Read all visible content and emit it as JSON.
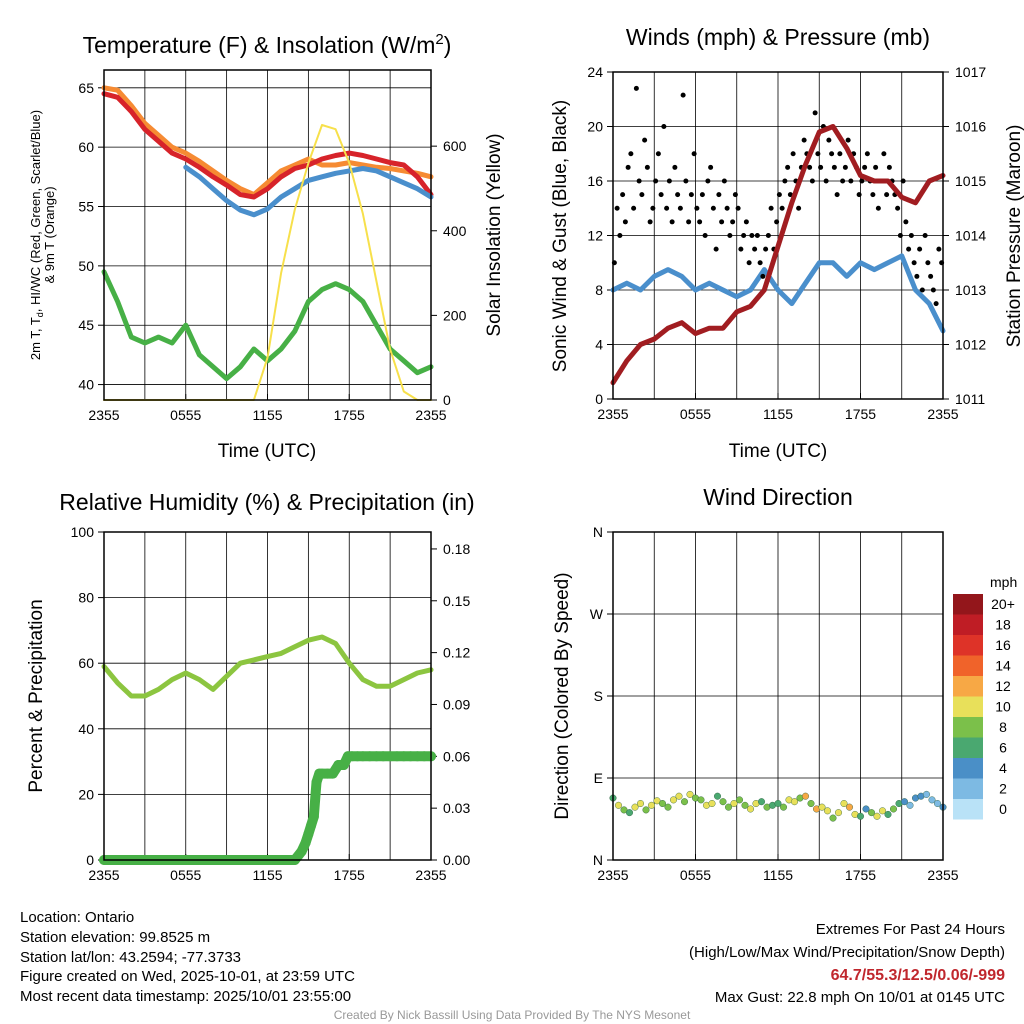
{
  "footer": {
    "location": "Location: Ontario",
    "elevation": "Station elevation: 99.8525 m",
    "latlon": "Station lat/lon: 43.2594; -77.3733",
    "created": "Figure created on Wed, 2025-10-01, at 23:59 UTC",
    "recent": "Most recent data timestamp: 2025/10/01 23:55:00",
    "extremes_title": "Extremes For Past 24 Hours",
    "extremes_sub": "(High/Low/Max Wind/Precipitation/Snow Depth)",
    "extremes_values": "64.7/55.3/12.5/0.06/-999",
    "max_gust": "Max Gust: 22.8 mph On 10/01 at 0145 UTC",
    "credit": "Created By Nick Bassill Using Data Provided By The NYS Mesonet"
  },
  "chart_data": [
    {
      "type": "line",
      "title_main": "Temperature (F) & Insolation (W/m",
      "title_sup": "2",
      "title_end": ")",
      "xlabel": "Time (UTC)",
      "ylabel_parts": [
        "2m T, T",
        "d",
        ", HI/WC (Red, Green, Scarlet/Blue)"
      ],
      "ylabel_line2": "& 9m T (Orange)",
      "ylabel_right": "Solar Insolation (Yellow)",
      "xticks": [
        "2355",
        "0555",
        "1155",
        "1755",
        "2355"
      ],
      "yticks": [
        40,
        45,
        50,
        55,
        60,
        65
      ],
      "yticks_right": [
        0,
        200,
        400,
        600
      ],
      "ylim": [
        38.7,
        66.5
      ],
      "ylim_right": [
        0,
        780
      ],
      "x_hours": [
        0,
        1,
        2,
        3,
        4,
        5,
        6,
        7,
        8,
        9,
        10,
        11,
        12,
        13,
        14,
        15,
        16,
        17,
        18,
        19,
        20,
        21,
        22,
        23,
        24
      ],
      "series": [
        {
          "name": "9m T",
          "color": "#f68b33",
          "values": [
            65,
            64.8,
            63.5,
            62,
            61,
            60,
            59.5,
            58.8,
            58,
            57.2,
            56.5,
            56,
            57,
            58,
            58.5,
            59,
            58.5,
            58.5,
            58.7,
            58.5,
            58.3,
            58.2,
            58,
            57.8,
            57.5
          ]
        },
        {
          "name": "2m T",
          "color": "#d7232a",
          "values": [
            64.5,
            64.2,
            63,
            61.5,
            60.5,
            59.5,
            59,
            58.3,
            57.5,
            56.8,
            56,
            55.8,
            56.5,
            57.5,
            58.2,
            58.5,
            59,
            59.3,
            59.5,
            59.3,
            59,
            58.7,
            58.5,
            57.5,
            56
          ]
        },
        {
          "name": "HI/WC",
          "color": "#4a8fcc",
          "values": [
            null,
            null,
            null,
            null,
            null,
            null,
            58.3,
            57.5,
            56.5,
            55.5,
            54.7,
            54.3,
            54.8,
            55.8,
            56.5,
            57.2,
            57.5,
            57.8,
            58,
            58.2,
            58,
            57.5,
            57,
            56.5,
            55.8
          ]
        },
        {
          "name": "Td",
          "color": "#47b046",
          "values": [
            49.5,
            47,
            44,
            43.5,
            44,
            43.5,
            45,
            42.5,
            41.5,
            40.5,
            41.5,
            43,
            42,
            43,
            44.5,
            47,
            48,
            48.5,
            48,
            47,
            45,
            43,
            42,
            41,
            41.5
          ]
        },
        {
          "name": "Solar Insolation",
          "color": "#f7e04b",
          "axis": "right",
          "values": [
            0,
            0,
            0,
            0,
            0,
            0,
            0,
            0,
            0,
            0,
            0,
            0,
            100,
            300,
            450,
            560,
            650,
            640,
            560,
            440,
            280,
            120,
            20,
            0,
            0
          ]
        }
      ]
    },
    {
      "type": "line",
      "title": "Winds (mph) & Pressure (mb)",
      "xlabel": "Time (UTC)",
      "ylabel": "Sonic Wind & Gust (Blue, Black)",
      "ylabel_right": "Station Pressure (Maroon)",
      "xticks": [
        "2355",
        "0555",
        "1155",
        "1755",
        "2355"
      ],
      "yticks": [
        0,
        4,
        8,
        12,
        16,
        20,
        24
      ],
      "yticks_right": [
        1011,
        1012,
        1013,
        1014,
        1015,
        1016,
        1017
      ],
      "ylim": [
        0,
        24
      ],
      "ylim_right": [
        1011,
        1017
      ],
      "x_hours": [
        0,
        1,
        2,
        3,
        4,
        5,
        6,
        7,
        8,
        9,
        10,
        11,
        12,
        13,
        14,
        15,
        16,
        17,
        18,
        19,
        20,
        21,
        22,
        23,
        24
      ],
      "series": [
        {
          "name": "Sonic Wind",
          "color": "#4a8fcc",
          "values": [
            8,
            8.5,
            8,
            9,
            9.5,
            9,
            8,
            8.5,
            8,
            7.5,
            8,
            9.5,
            8,
            7,
            8.5,
            10,
            10,
            9,
            10,
            9.5,
            10,
            10.5,
            8,
            7,
            5
          ]
        },
        {
          "name": "Station Pressure",
          "color": "#a11d21",
          "axis": "right",
          "values": [
            1011.3,
            1011.7,
            1012,
            1012.1,
            1012.3,
            1012.4,
            1012.2,
            1012.3,
            1012.3,
            1012.6,
            1012.7,
            1013,
            1013.8,
            1014.6,
            1015.3,
            1015.9,
            1016,
            1015.6,
            1015.1,
            1015,
            1015,
            1014.7,
            1014.6,
            1015,
            1015.1
          ]
        },
        {
          "name": "Gust",
          "color": "#000000",
          "type": "scatter",
          "x": [
            0.1,
            0.3,
            0.5,
            0.7,
            0.9,
            1.1,
            1.3,
            1.5,
            1.7,
            1.9,
            2.1,
            2.3,
            2.5,
            2.7,
            2.9,
            3.1,
            3.3,
            3.5,
            3.7,
            3.9,
            4.1,
            4.3,
            4.5,
            4.7,
            4.9,
            5.1,
            5.3,
            5.5,
            5.7,
            5.9,
            6.1,
            6.3,
            6.5,
            6.7,
            6.9,
            7.1,
            7.3,
            7.5,
            7.7,
            7.9,
            8.1,
            8.3,
            8.5,
            8.7,
            8.9,
            9.1,
            9.3,
            9.5,
            9.7,
            9.9,
            10.1,
            10.3,
            10.5,
            10.7,
            10.9,
            11.1,
            11.3,
            11.5,
            11.7,
            11.9,
            12.1,
            12.3,
            12.5,
            12.7,
            12.9,
            13.1,
            13.3,
            13.5,
            13.7,
            13.9,
            14.1,
            14.3,
            14.5,
            14.7,
            14.9,
            15.1,
            15.3,
            15.5,
            15.7,
            15.9,
            16.1,
            16.3,
            16.5,
            16.7,
            16.9,
            17.1,
            17.3,
            17.5,
            17.7,
            17.9,
            18.1,
            18.3,
            18.5,
            18.7,
            18.9,
            19.1,
            19.3,
            19.5,
            19.7,
            19.9,
            20.1,
            20.3,
            20.5,
            20.7,
            20.9,
            21.1,
            21.3,
            21.5,
            21.7,
            21.9,
            22.1,
            22.3,
            22.5,
            22.7,
            22.9,
            23.1,
            23.3,
            23.5,
            23.7,
            23.9
          ],
          "values": [
            10,
            14,
            12,
            15,
            13,
            17,
            18,
            14,
            22.8,
            16,
            15,
            19,
            17,
            13,
            14,
            16,
            18,
            15,
            20,
            14,
            16,
            13,
            17,
            15,
            14,
            22.3,
            16,
            13,
            15,
            18,
            14,
            13,
            15,
            12,
            16,
            17,
            14,
            11,
            15,
            13,
            16,
            14,
            12,
            13,
            15,
            14,
            11,
            12,
            13,
            10,
            12,
            11,
            12,
            10,
            9,
            11,
            12,
            14,
            11,
            13,
            15,
            14,
            16,
            17,
            15,
            18,
            16,
            14,
            17,
            19,
            18,
            17,
            16,
            21,
            18,
            17,
            20,
            16,
            19,
            18,
            17,
            15,
            18,
            16,
            17,
            19,
            16,
            18,
            17,
            15,
            16,
            17,
            18,
            16,
            15,
            17,
            14,
            16,
            18,
            15,
            17,
            16,
            15,
            14,
            12,
            16,
            13,
            11,
            12,
            10,
            9,
            11,
            8,
            12,
            10,
            9,
            8,
            7,
            11,
            10
          ]
        }
      ]
    },
    {
      "type": "line",
      "title": "Relative Humidity (%) & Precipitation (in)",
      "ylabel": "Percent & Precipitation",
      "xticks": [
        "2355",
        "0555",
        "1155",
        "1755",
        "2355"
      ],
      "yticks": [
        0,
        20,
        40,
        60,
        80,
        100
      ],
      "yticks_right": [
        "0.00",
        "0.03",
        "0.06",
        "0.09",
        "0.12",
        "0.15",
        "0.18"
      ],
      "ylim": [
        0,
        100
      ],
      "ylim_right": [
        0,
        0.1898
      ],
      "x_hours": [
        0,
        1,
        2,
        3,
        4,
        5,
        6,
        7,
        8,
        9,
        10,
        11,
        12,
        13,
        14,
        15,
        16,
        17,
        18,
        19,
        20,
        21,
        22,
        23,
        24
      ],
      "series": [
        {
          "name": "Relative Humidity",
          "color": "#8cc540",
          "values": [
            59,
            54,
            50,
            50,
            52,
            55,
            57,
            55,
            52,
            56,
            60,
            61,
            62,
            63,
            65,
            67,
            68,
            66,
            60,
            55,
            53,
            53,
            55,
            57,
            58
          ]
        },
        {
          "name": "Precipitation",
          "color": "#47b046",
          "axis": "right",
          "type": "scatter",
          "x": [
            0,
            0.5,
            1,
            1.5,
            2,
            2.5,
            3,
            3.5,
            4,
            4.5,
            5,
            5.5,
            6,
            6.5,
            7,
            7.5,
            8,
            8.5,
            9,
            9.5,
            10,
            10.5,
            11,
            11.5,
            12,
            12.5,
            13,
            13.5,
            14,
            14.5,
            14.8,
            15,
            15.2,
            15.4,
            15.6,
            15.8,
            16,
            16.4,
            16.8,
            17.2,
            17.6,
            17.9,
            18.2,
            18.6,
            19,
            19.5,
            20,
            20.5,
            21,
            21.5,
            22,
            22.5,
            23,
            23.5,
            24
          ],
          "values": [
            0,
            0,
            0,
            0,
            0,
            0,
            0,
            0,
            0,
            0,
            0,
            0,
            0,
            0,
            0,
            0,
            0,
            0,
            0,
            0,
            0,
            0,
            0,
            0,
            0,
            0,
            0,
            0,
            0,
            0.005,
            0.01,
            0.015,
            0.02,
            0.025,
            0.045,
            0.05,
            0.05,
            0.05,
            0.05,
            0.055,
            0.055,
            0.06,
            0.06,
            0.06,
            0.06,
            0.06,
            0.06,
            0.06,
            0.06,
            0.06,
            0.06,
            0.06,
            0.06,
            0.06,
            0.06
          ]
        }
      ]
    },
    {
      "type": "scatter",
      "title": "Wind Direction",
      "ylabel": "Direction (Colored By Speed)",
      "xticks": [
        "2355",
        "0555",
        "1155",
        "1755",
        "2355"
      ],
      "yticks": [
        "N",
        "E",
        "S",
        "W",
        "N"
      ],
      "ylim": [
        0,
        360
      ],
      "colorbar_title": "mph",
      "colorbar": [
        {
          "label": "0",
          "color": "#b9e2f7"
        },
        {
          "label": "2",
          "color": "#7dbae3"
        },
        {
          "label": "4",
          "color": "#4a8fc7"
        },
        {
          "label": "6",
          "color": "#4aa870"
        },
        {
          "label": "8",
          "color": "#7bc04a"
        },
        {
          "label": "10",
          "color": "#e8e05a"
        },
        {
          "label": "12",
          "color": "#f7a845"
        },
        {
          "label": "14",
          "color": "#f0632a"
        },
        {
          "label": "16",
          "color": "#de3328"
        },
        {
          "label": "18",
          "color": "#bf1d25"
        },
        {
          "label": "20+",
          "color": "#93161b"
        }
      ],
      "x": [
        0,
        0.4,
        0.8,
        1.2,
        1.6,
        2,
        2.4,
        2.8,
        3.2,
        3.6,
        4,
        4.4,
        4.8,
        5.2,
        5.6,
        6,
        6.4,
        6.8,
        7.2,
        7.6,
        8,
        8.4,
        8.8,
        9.2,
        9.6,
        10,
        10.4,
        10.8,
        11.2,
        11.6,
        12,
        12.4,
        12.8,
        13.2,
        13.6,
        14,
        14.4,
        14.8,
        15.2,
        15.6,
        16,
        16.4,
        16.8,
        17.2,
        17.6,
        18,
        18.4,
        18.8,
        19.2,
        19.6,
        20,
        20.4,
        20.8,
        21.2,
        21.6,
        22,
        22.4,
        22.8,
        23.2,
        23.6,
        24
      ],
      "direction": [
        68,
        60,
        55,
        52,
        58,
        62,
        55,
        60,
        65,
        62,
        58,
        66,
        70,
        64,
        72,
        68,
        66,
        60,
        62,
        70,
        64,
        58,
        62,
        66,
        60,
        56,
        62,
        64,
        58,
        60,
        62,
        58,
        66,
        64,
        68,
        70,
        62,
        56,
        58,
        54,
        46,
        52,
        62,
        58,
        50,
        48,
        56,
        52,
        48,
        54,
        50,
        56,
        62,
        64,
        60,
        68,
        70,
        72,
        66,
        62,
        58
      ],
      "speed": [
        6,
        10,
        9,
        6,
        11,
        10,
        9,
        11,
        10,
        8,
        9,
        11,
        10,
        8,
        11,
        9,
        8,
        11,
        10,
        7,
        8,
        8,
        11,
        9,
        8,
        10,
        11,
        6,
        8,
        7,
        6,
        9,
        11,
        10,
        8,
        12,
        9,
        13,
        11,
        10,
        9,
        11,
        10,
        12,
        11,
        6,
        5,
        8,
        10,
        11,
        7,
        9,
        6,
        5,
        3,
        4,
        5,
        3,
        2,
        3,
        4
      ]
    }
  ]
}
